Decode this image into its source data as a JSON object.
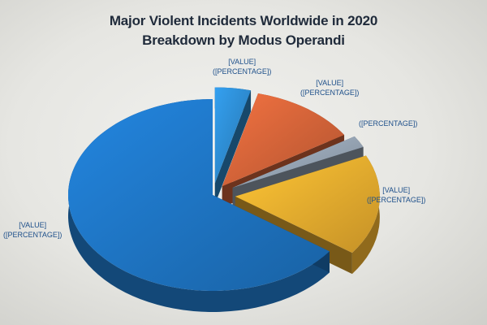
{
  "chart_data": {
    "type": "pie",
    "title": "Major Violent Incidents Worldwide in 2020",
    "subtitle": "Breakdown by Modus Operandi",
    "slices": [
      {
        "value": 4,
        "label_value": "[VALUE]",
        "label_percentage": "([PERCENTAGE])",
        "color": "#2e8fd6"
      },
      {
        "value": 12,
        "label_value": "[VALUE]",
        "label_percentage": "([PERCENTAGE])",
        "color": "#d9663a"
      },
      {
        "value": 2,
        "label_value": "",
        "label_percentage": "([PERCENTAGE])",
        "color": "#9aa8b8"
      },
      {
        "value": 17,
        "label_value": "[VALUE]",
        "label_percentage": "([PERCENTAGE])",
        "color": "#f0b12f"
      },
      {
        "value": 65,
        "label_value": "[VALUE]",
        "label_percentage": "([PERCENTAGE])",
        "color": "#1f78c8"
      }
    ],
    "exploded": true,
    "three_d": true,
    "legend": "none"
  }
}
